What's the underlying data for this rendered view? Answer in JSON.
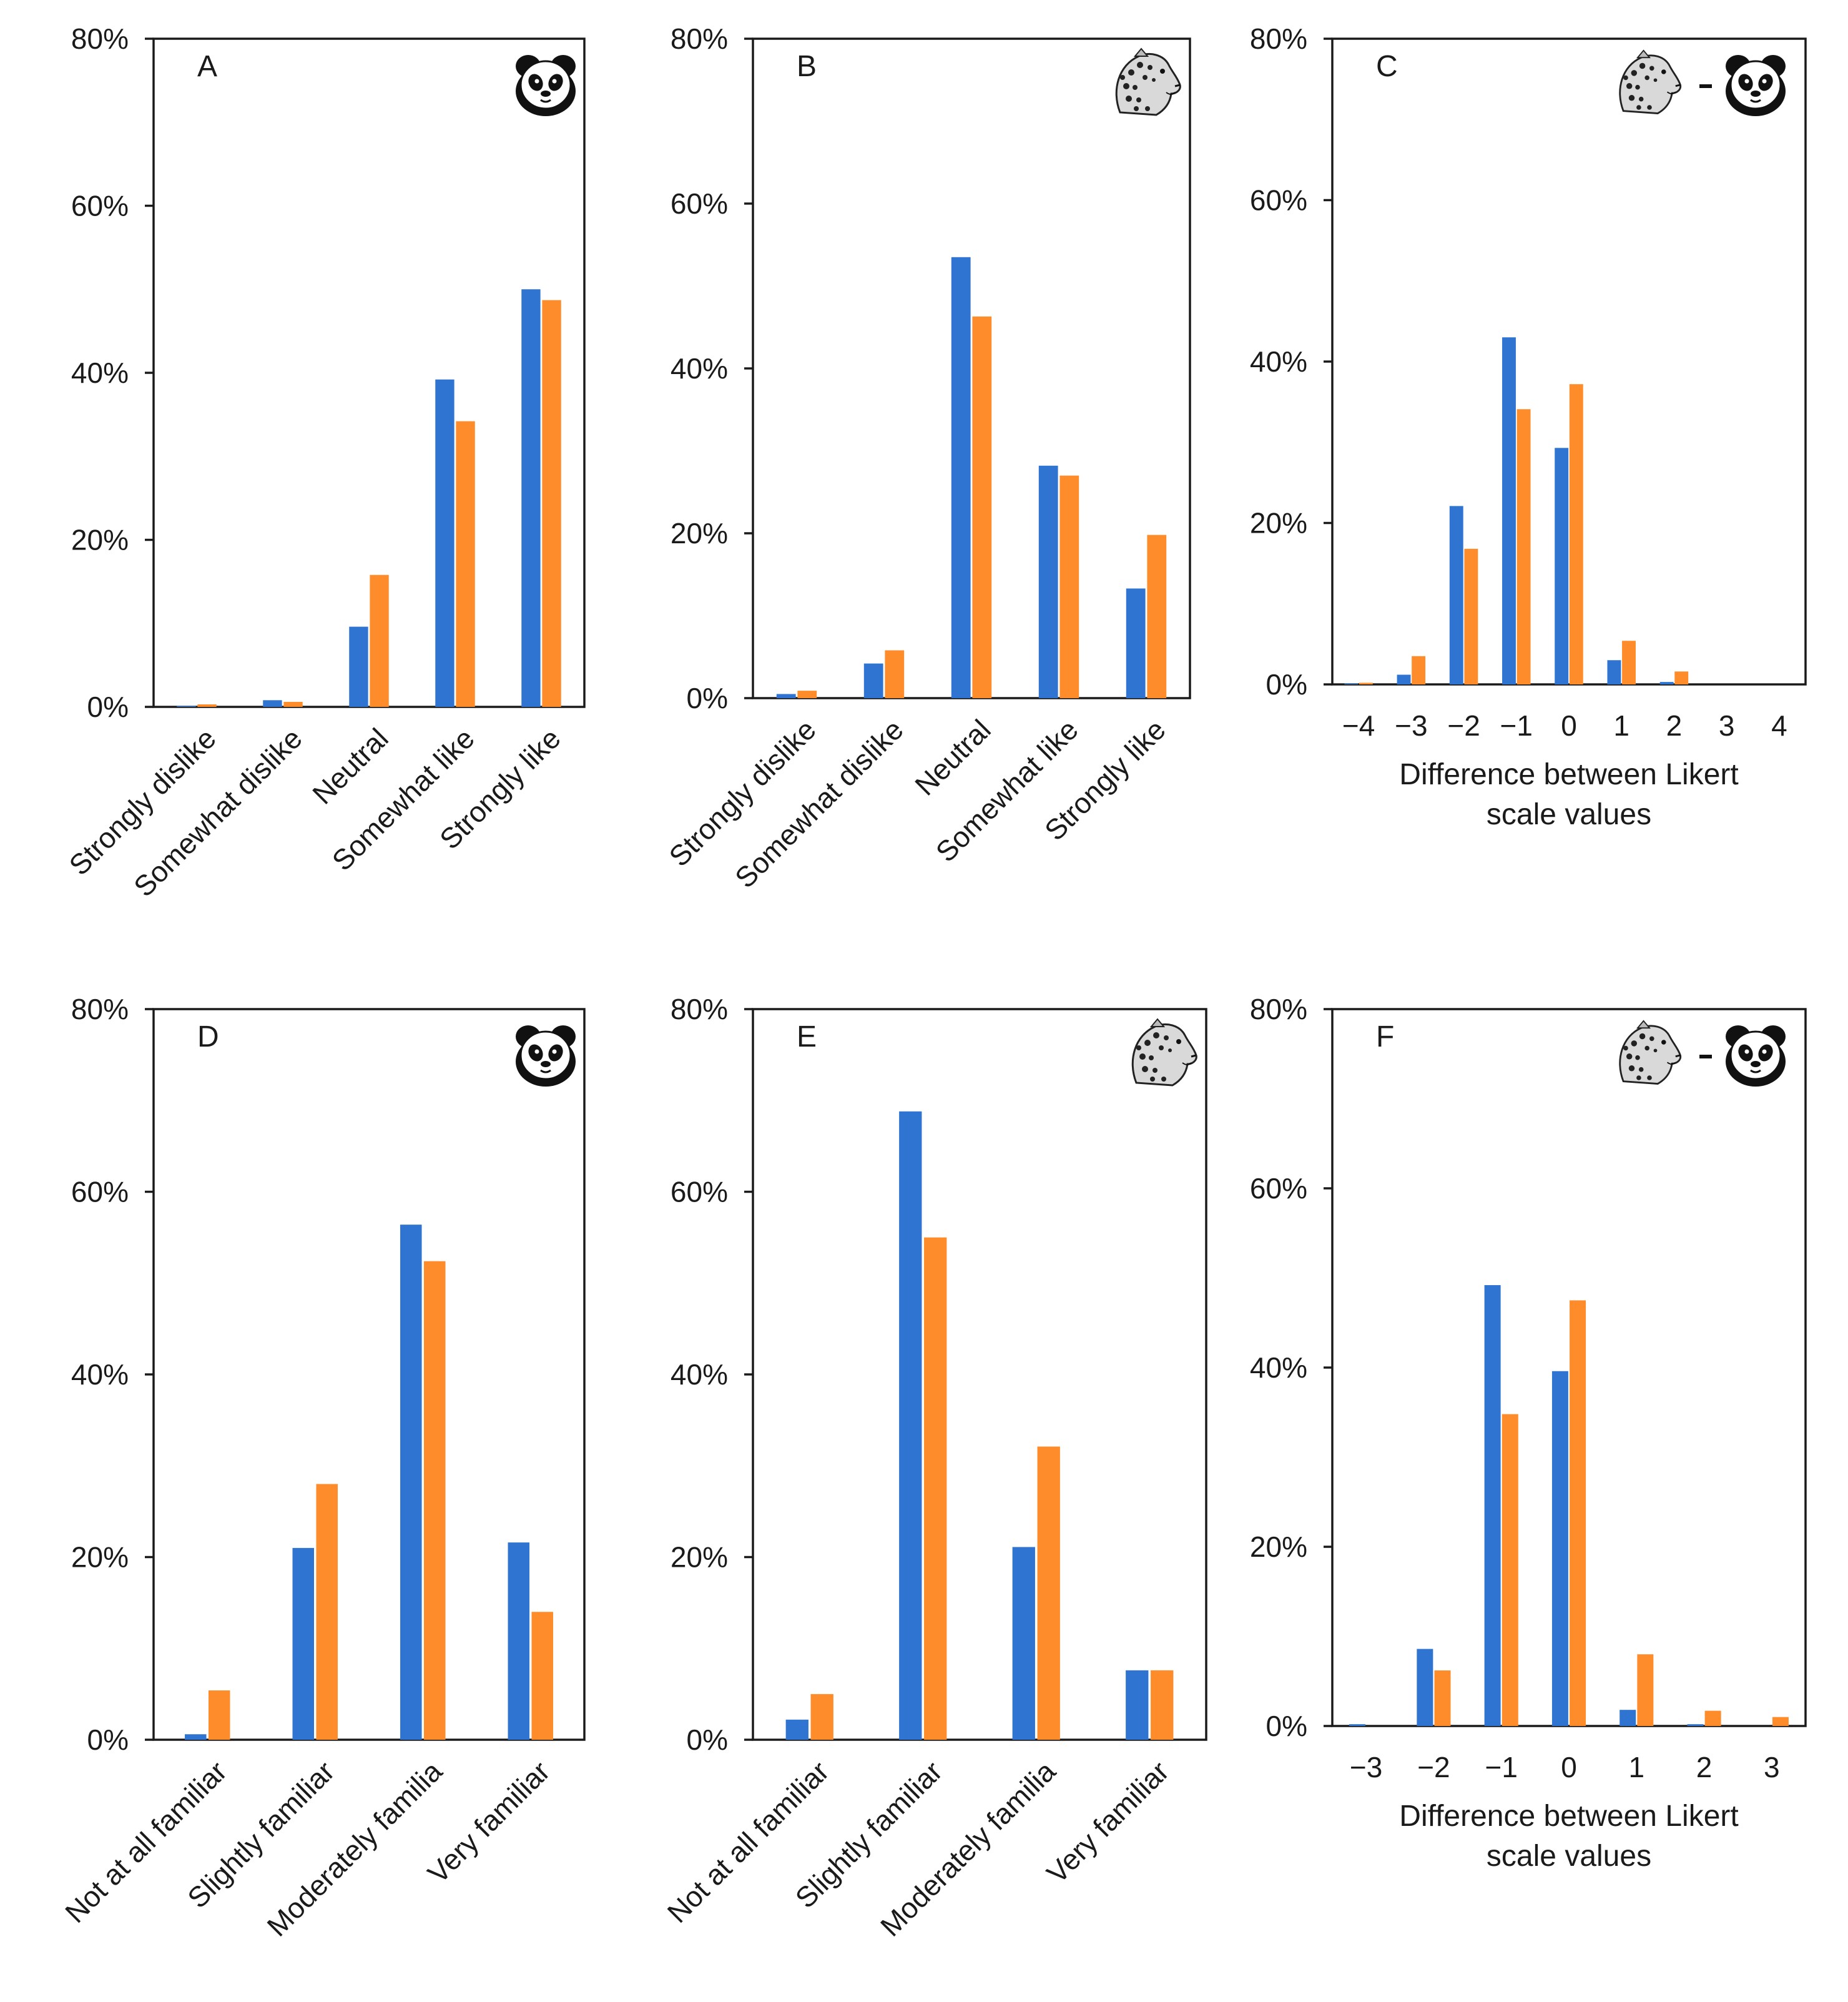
{
  "colors": {
    "series1": "#2f74d0",
    "series2": "#ff8c2a"
  },
  "chart_data": [
    {
      "id": "A",
      "letter": "A",
      "icon": "panda-icon",
      "type": "bar",
      "categories": [
        "Strongly dislike",
        "Somewhat dislike",
        "Neutral",
        "Somewhat like",
        "Strongly like"
      ],
      "series": [
        {
          "name": "series-1",
          "values": [
            0.1,
            0.8,
            9.6,
            39.2,
            50.0
          ]
        },
        {
          "name": "series-2",
          "values": [
            0.3,
            0.6,
            15.8,
            34.2,
            48.7
          ]
        }
      ],
      "ylim": [
        0,
        80
      ],
      "yticks": [
        "0%",
        "20%",
        "40%",
        "60%",
        "80%"
      ],
      "xlabel": []
    },
    {
      "id": "B",
      "letter": "B",
      "icon": "leopard-icon",
      "type": "bar",
      "categories": [
        "Strongly dislike",
        "Somewhat dislike",
        "Neutral",
        "Somewhat like",
        "Strongly like"
      ],
      "series": [
        {
          "name": "series-1",
          "values": [
            0.5,
            4.2,
            53.5,
            28.2,
            13.3
          ]
        },
        {
          "name": "series-2",
          "values": [
            0.9,
            5.8,
            46.3,
            27.0,
            19.8
          ]
        }
      ],
      "ylim": [
        0,
        80
      ],
      "yticks": [
        "0%",
        "20%",
        "40%",
        "60%",
        "80%"
      ],
      "xlabel": []
    },
    {
      "id": "C",
      "letter": "C",
      "icon": "leopard-minus-panda-icon",
      "type": "bar",
      "categories": [
        "−4",
        "−3",
        "−2",
        "−1",
        "0",
        "1",
        "2",
        "3",
        "4"
      ],
      "series": [
        {
          "name": "series-1",
          "values": [
            0.1,
            1.2,
            22.1,
            43.0,
            29.3,
            3.0,
            0.3,
            0.0,
            0.0
          ]
        },
        {
          "name": "series-2",
          "values": [
            0.2,
            3.5,
            16.8,
            34.1,
            37.2,
            5.4,
            1.6,
            0.0,
            0.0
          ]
        }
      ],
      "ylim": [
        0,
        80
      ],
      "yticks": [
        "0%",
        "20%",
        "40%",
        "60%",
        "80%"
      ],
      "xlabel": [
        "Difference between Likert",
        "scale values"
      ]
    },
    {
      "id": "D",
      "letter": "D",
      "icon": "panda-icon",
      "type": "bar",
      "categories": [
        "Not at all familiar",
        "Slightly familiar",
        "Moderately familia",
        "Very familiar"
      ],
      "series": [
        {
          "name": "series-1",
          "values": [
            0.6,
            21.0,
            56.4,
            21.6
          ]
        },
        {
          "name": "series-2",
          "values": [
            5.4,
            28.0,
            52.4,
            14.0
          ]
        }
      ],
      "ylim": [
        0,
        80
      ],
      "yticks": [
        "0%",
        "20%",
        "40%",
        "60%",
        "80%"
      ],
      "xlabel": []
    },
    {
      "id": "E",
      "letter": "E",
      "icon": "leopard-icon",
      "type": "bar",
      "categories": [
        "Not at all familiar",
        "Slightly familiar",
        "Moderately familia",
        "Very familiar"
      ],
      "series": [
        {
          "name": "series-1",
          "values": [
            2.2,
            68.8,
            21.1,
            7.6
          ]
        },
        {
          "name": "series-2",
          "values": [
            5.0,
            55.0,
            32.1,
            7.6
          ]
        }
      ],
      "ylim": [
        0,
        80
      ],
      "yticks": [
        "0%",
        "20%",
        "40%",
        "60%",
        "80%"
      ],
      "xlabel": []
    },
    {
      "id": "F",
      "letter": "F",
      "icon": "leopard-minus-panda-icon",
      "type": "bar",
      "categories": [
        "−3",
        "−2",
        "−1",
        "0",
        "1",
        "2",
        "3"
      ],
      "series": [
        {
          "name": "series-1",
          "values": [
            0.2,
            8.6,
            49.2,
            39.6,
            1.8,
            0.2,
            0.0
          ]
        },
        {
          "name": "series-2",
          "values": [
            0.0,
            6.2,
            34.8,
            47.5,
            8.0,
            1.7,
            1.0
          ]
        }
      ],
      "ylim": [
        0,
        80
      ],
      "yticks": [
        "0%",
        "20%",
        "40%",
        "60%",
        "80%"
      ],
      "xlabel": [
        "Difference between Likert",
        "scale values"
      ]
    }
  ]
}
